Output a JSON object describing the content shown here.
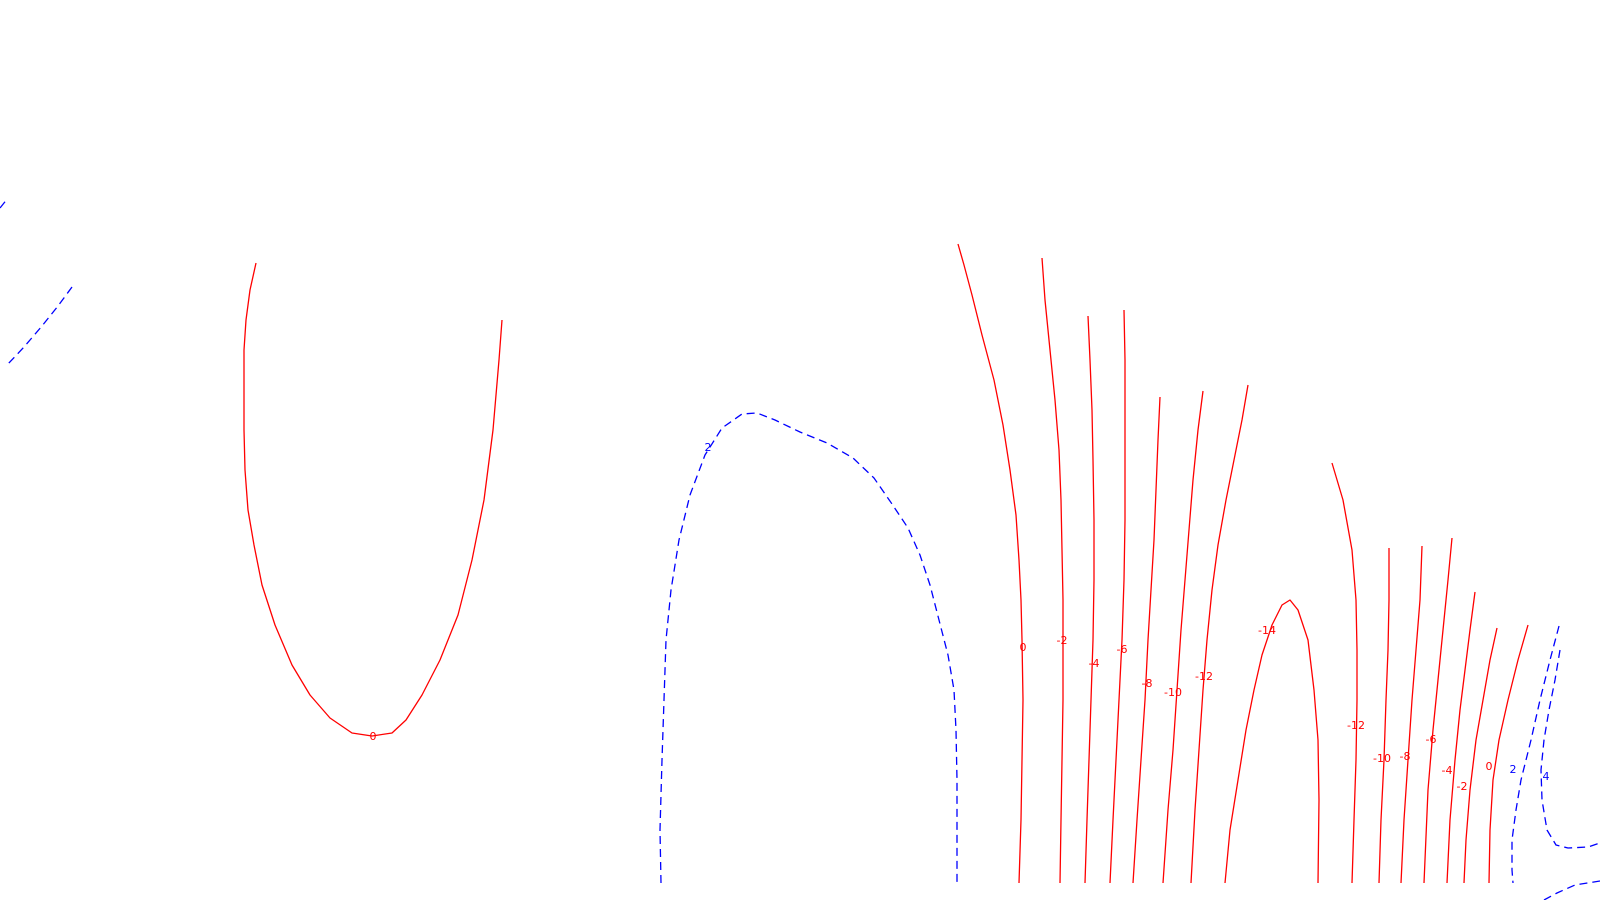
{
  "chart_data": {
    "type": "contour",
    "title": "",
    "xlabel": "",
    "ylabel": "",
    "grid": false,
    "legend": "none",
    "colors": {
      "negative": "#ff0000",
      "positive": "#0000ff"
    },
    "styles": {
      "negative": "solid",
      "positive": "dashed"
    },
    "contour_levels": [
      {
        "name": "left-positive-arc",
        "level": 2,
        "sign": "positive"
      },
      {
        "name": "left-zero-loop",
        "level": 0,
        "sign": "negative",
        "label": "0"
      },
      {
        "name": "center-positive-loop",
        "level": 2,
        "sign": "positive",
        "label": "2"
      },
      {
        "name": "right-zero",
        "level": 0,
        "sign": "negative",
        "label": "0"
      },
      {
        "name": "right-minus-2",
        "level": -2,
        "sign": "negative",
        "label": "-2"
      },
      {
        "name": "right-minus-4",
        "level": -4,
        "sign": "negative",
        "label": "-4"
      },
      {
        "name": "right-minus-6",
        "level": -6,
        "sign": "negative",
        "label": "-6"
      },
      {
        "name": "right-minus-8",
        "level": -8,
        "sign": "negative",
        "label": "-8"
      },
      {
        "name": "right-minus-10",
        "level": -10,
        "sign": "negative",
        "label": "-10"
      },
      {
        "name": "right-minus-12",
        "level": -12,
        "sign": "negative",
        "label": "-12"
      },
      {
        "name": "right-minus-14",
        "level": -14,
        "sign": "negative",
        "label": "-14"
      },
      {
        "name": "far-right-minus-12",
        "level": -12,
        "sign": "negative",
        "label": "-12"
      },
      {
        "name": "far-right-minus-10",
        "level": -10,
        "sign": "negative",
        "label": "-10"
      },
      {
        "name": "far-right-minus-8",
        "level": -8,
        "sign": "negative",
        "label": "-8"
      },
      {
        "name": "far-right-minus-6",
        "level": -6,
        "sign": "negative",
        "label": "-6"
      },
      {
        "name": "far-right-minus-4",
        "level": -4,
        "sign": "negative",
        "label": "-4"
      },
      {
        "name": "far-right-minus-2",
        "level": -2,
        "sign": "negative",
        "label": "-2"
      },
      {
        "name": "far-right-zero",
        "level": 0,
        "sign": "negative",
        "label": "0"
      },
      {
        "name": "far-right-plus-2",
        "level": 2,
        "sign": "positive",
        "label": "2"
      },
      {
        "name": "far-right-plus-4",
        "level": 4,
        "sign": "positive",
        "label": "4"
      }
    ]
  }
}
